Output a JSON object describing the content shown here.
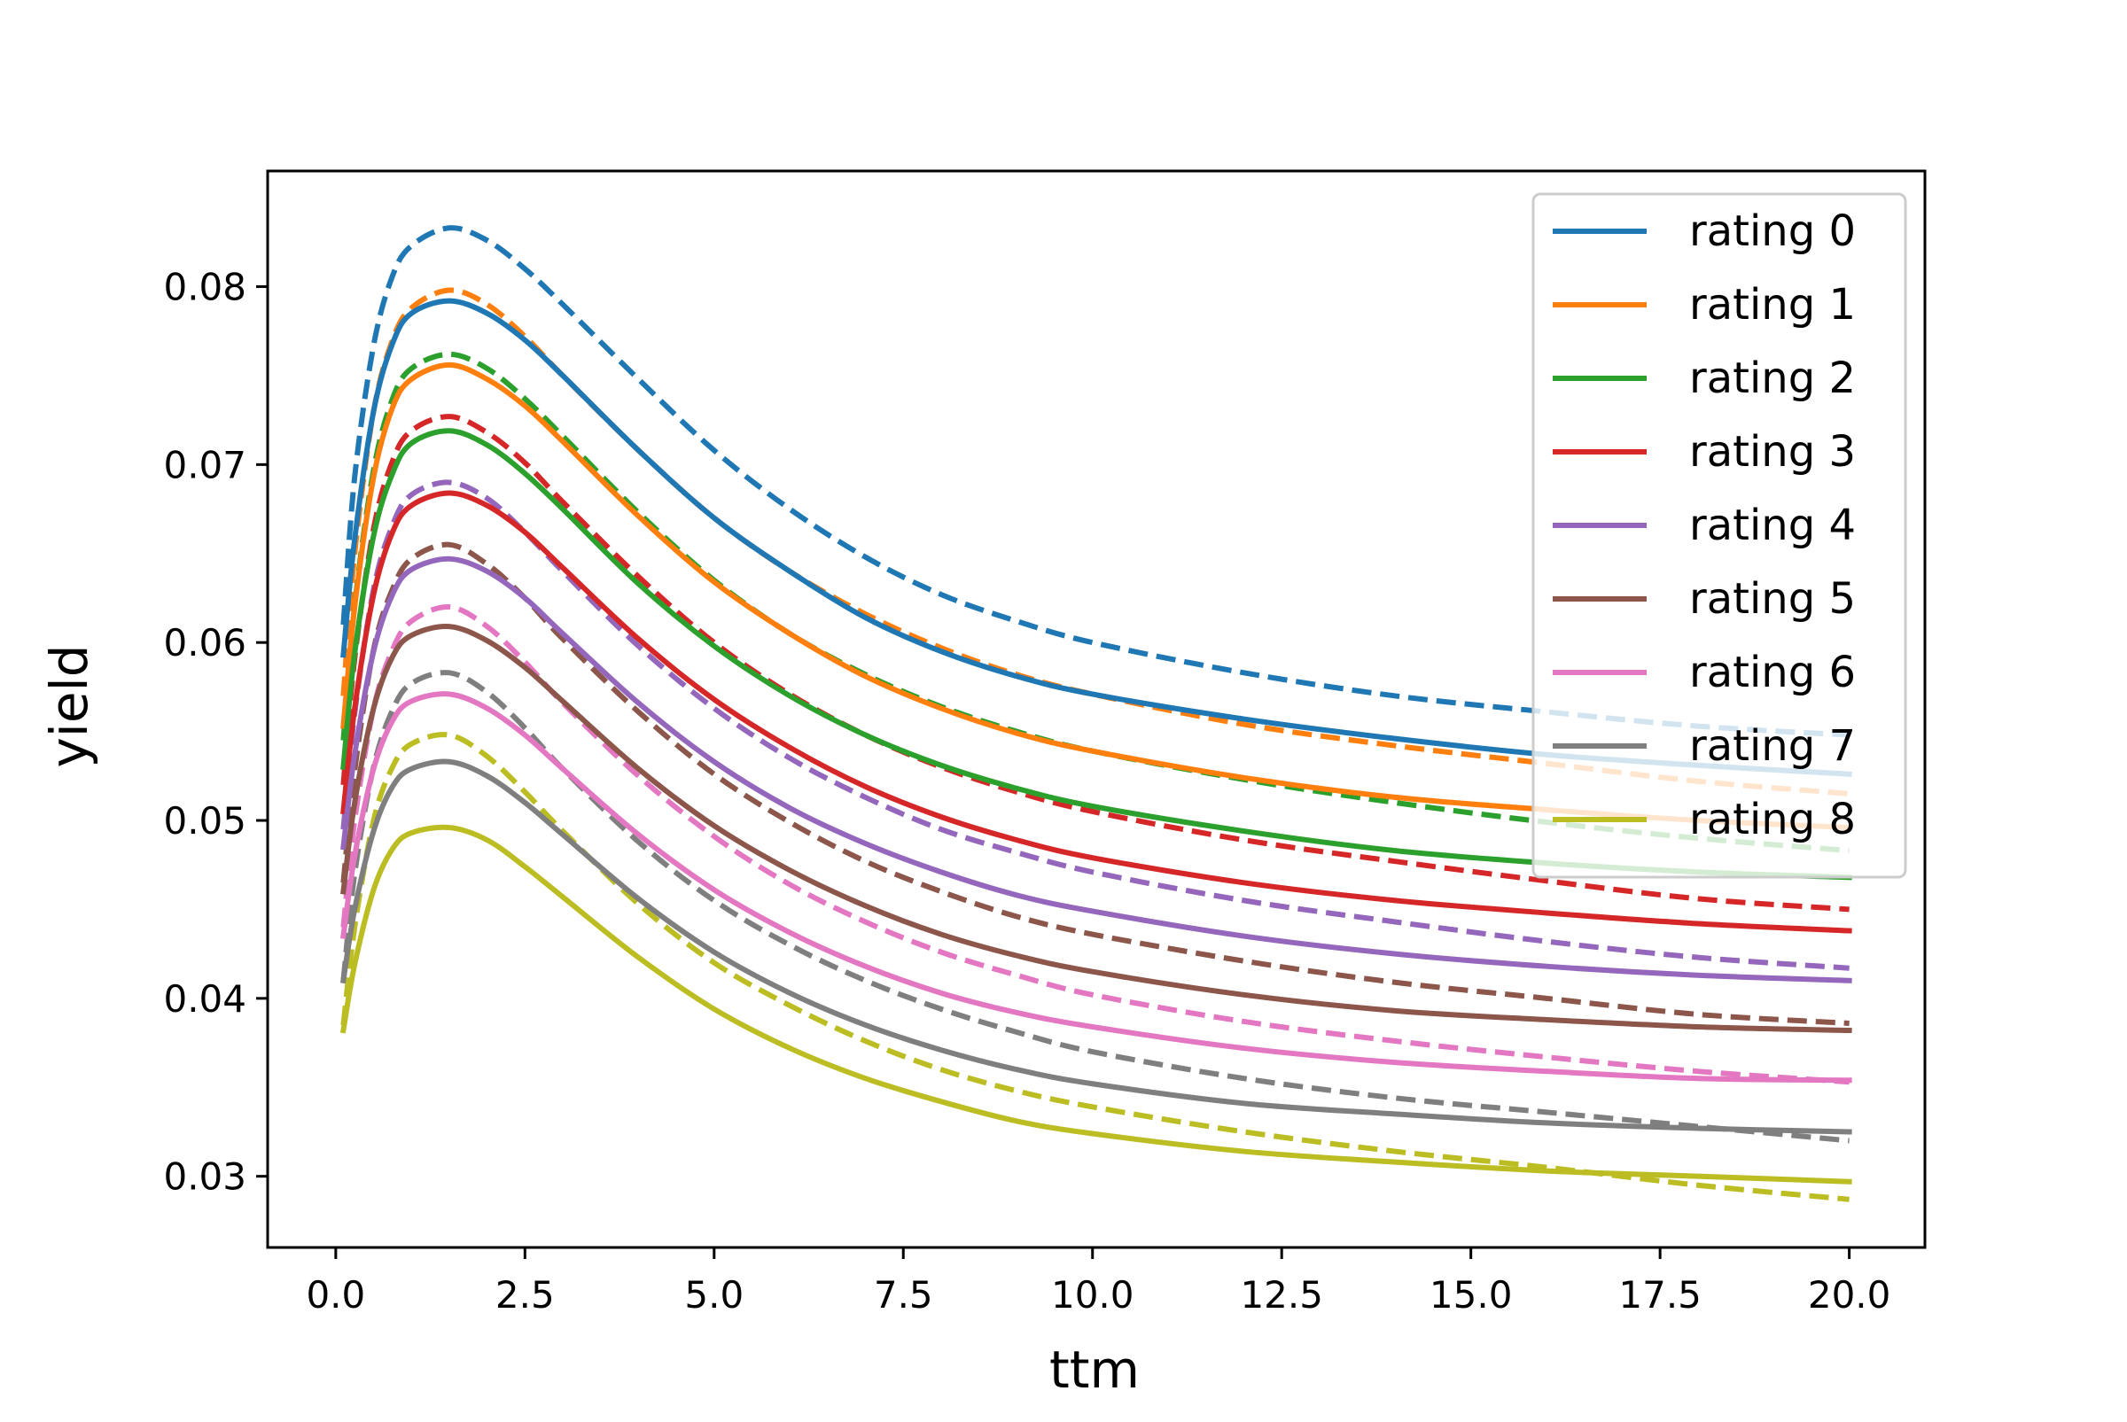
{
  "chart_data": {
    "type": "line",
    "title": "",
    "xlabel": "ttm",
    "ylabel": "yield",
    "xlim": [
      -0.9,
      21.0
    ],
    "ylim": [
      0.026,
      0.0865
    ],
    "xticks": [
      0.0,
      2.5,
      5.0,
      7.5,
      10.0,
      12.5,
      15.0,
      17.5,
      20.0
    ],
    "xtick_labels": [
      "0.0",
      "2.5",
      "5.0",
      "7.5",
      "10.0",
      "12.5",
      "15.0",
      "17.5",
      "20.0"
    ],
    "yticks": [
      0.03,
      0.04,
      0.05,
      0.06,
      0.07,
      0.08
    ],
    "ytick_labels": [
      "0.03",
      "0.04",
      "0.05",
      "0.06",
      "0.07",
      "0.08"
    ],
    "grid": false,
    "legend": {
      "position": "top-right",
      "style": "solid"
    },
    "x": [
      0.1,
      0.25,
      0.5,
      0.75,
      1.0,
      1.5,
      2.0,
      2.5,
      3.0,
      4.0,
      5.0,
      6.0,
      7.0,
      8.0,
      9.0,
      10.0,
      12.0,
      14.0,
      16.0,
      18.0,
      20.0
    ],
    "series": [
      {
        "name": "rating 0",
        "color": "#1f77b4",
        "solid": [
          0.0593,
          0.0658,
          0.073,
          0.0768,
          0.0785,
          0.0792,
          0.0785,
          0.077,
          0.075,
          0.0708,
          0.067,
          0.064,
          0.0614,
          0.0595,
          0.0581,
          0.0571,
          0.0557,
          0.0546,
          0.0537,
          0.0531,
          0.0526
        ],
        "dashed": [
          0.061,
          0.0693,
          0.0767,
          0.0806,
          0.0823,
          0.0833,
          0.0826,
          0.081,
          0.079,
          0.0748,
          0.0708,
          0.0675,
          0.0648,
          0.0627,
          0.0612,
          0.06,
          0.0583,
          0.057,
          0.0561,
          0.0553,
          0.0548
        ]
      },
      {
        "name": "rating 1",
        "color": "#ff7f0e",
        "solid": [
          0.0553,
          0.062,
          0.0693,
          0.0732,
          0.0748,
          0.0756,
          0.0748,
          0.0733,
          0.0713,
          0.0671,
          0.0634,
          0.0605,
          0.0581,
          0.0563,
          0.0549,
          0.0539,
          0.0524,
          0.0513,
          0.0506,
          0.05,
          0.0496
        ],
        "dashed": [
          0.057,
          0.065,
          0.073,
          0.077,
          0.0788,
          0.0798,
          0.079,
          0.0772,
          0.075,
          0.0708,
          0.067,
          0.064,
          0.0616,
          0.0597,
          0.0582,
          0.0571,
          0.0554,
          0.0542,
          0.0532,
          0.0522,
          0.0515
        ]
      },
      {
        "name": "rating 2",
        "color": "#2ca02c",
        "solid": [
          0.053,
          0.0594,
          0.066,
          0.0695,
          0.0712,
          0.0719,
          0.0711,
          0.0695,
          0.0675,
          0.0633,
          0.0598,
          0.057,
          0.0548,
          0.0531,
          0.0518,
          0.0508,
          0.0494,
          0.0483,
          0.0476,
          0.0471,
          0.0468
        ],
        "dashed": [
          0.0545,
          0.0621,
          0.0697,
          0.0737,
          0.0754,
          0.0762,
          0.0754,
          0.0737,
          0.0716,
          0.0673,
          0.0635,
          0.0605,
          0.0582,
          0.0564,
          0.055,
          0.0539,
          0.0523,
          0.051,
          0.0499,
          0.049,
          0.0483
        ]
      },
      {
        "name": "rating 3",
        "color": "#d62728",
        "solid": [
          0.0505,
          0.0563,
          0.0627,
          0.0662,
          0.0677,
          0.0684,
          0.0677,
          0.0662,
          0.0642,
          0.0602,
          0.0568,
          0.0541,
          0.0519,
          0.0502,
          0.0489,
          0.0479,
          0.0465,
          0.0455,
          0.0448,
          0.0442,
          0.0438
        ],
        "dashed": [
          0.052,
          0.0591,
          0.0664,
          0.0702,
          0.0719,
          0.0727,
          0.0718,
          0.0701,
          0.0679,
          0.0637,
          0.06,
          0.0571,
          0.0548,
          0.053,
          0.0516,
          0.0505,
          0.0489,
          0.0477,
          0.0466,
          0.0456,
          0.045
        ]
      },
      {
        "name": "rating 4",
        "color": "#9467bd",
        "solid": [
          0.0485,
          0.0537,
          0.0595,
          0.0627,
          0.0641,
          0.0647,
          0.064,
          0.0625,
          0.0605,
          0.0566,
          0.0533,
          0.0507,
          0.0487,
          0.0471,
          0.0458,
          0.0449,
          0.0435,
          0.0425,
          0.0418,
          0.0413,
          0.041
        ],
        "dashed": [
          0.0495,
          0.056,
          0.063,
          0.0666,
          0.0683,
          0.069,
          0.0681,
          0.0662,
          0.064,
          0.0598,
          0.0563,
          0.0535,
          0.0513,
          0.0495,
          0.0482,
          0.0471,
          0.0455,
          0.0443,
          0.0432,
          0.0423,
          0.0417
        ]
      },
      {
        "name": "rating 5",
        "color": "#8c564b",
        "solid": [
          0.046,
          0.051,
          0.0563,
          0.0592,
          0.0604,
          0.0609,
          0.0601,
          0.0586,
          0.0567,
          0.0529,
          0.0497,
          0.0472,
          0.0452,
          0.0436,
          0.0424,
          0.0415,
          0.0402,
          0.0393,
          0.0388,
          0.0384,
          0.0382
        ],
        "dashed": [
          0.0465,
          0.0528,
          0.0596,
          0.063,
          0.0647,
          0.0655,
          0.0644,
          0.0625,
          0.0602,
          0.0561,
          0.0526,
          0.0499,
          0.0477,
          0.046,
          0.0446,
          0.0436,
          0.0421,
          0.0409,
          0.04,
          0.0391,
          0.0386
        ]
      },
      {
        "name": "rating 6",
        "color": "#e377c2",
        "solid": [
          0.0435,
          0.048,
          0.0529,
          0.0556,
          0.0567,
          0.0571,
          0.0563,
          0.0548,
          0.0529,
          0.0492,
          0.0461,
          0.0437,
          0.0418,
          0.0403,
          0.0392,
          0.0384,
          0.0372,
          0.0364,
          0.0359,
          0.0355,
          0.0354
        ],
        "dashed": [
          0.044,
          0.05,
          0.0563,
          0.0596,
          0.0612,
          0.062,
          0.0609,
          0.0589,
          0.0566,
          0.0525,
          0.0491,
          0.0464,
          0.0443,
          0.0426,
          0.0413,
          0.0402,
          0.0387,
          0.0376,
          0.0367,
          0.0359,
          0.0353
        ]
      },
      {
        "name": "rating 7",
        "color": "#7f7f7f",
        "solid": [
          0.041,
          0.045,
          0.0494,
          0.0519,
          0.0529,
          0.0533,
          0.0525,
          0.051,
          0.0492,
          0.0456,
          0.0426,
          0.0403,
          0.0385,
          0.0371,
          0.036,
          0.0352,
          0.0341,
          0.0335,
          0.033,
          0.0327,
          0.0325
        ],
        "dashed": [
          0.041,
          0.047,
          0.053,
          0.0562,
          0.0577,
          0.0583,
          0.0572,
          0.0552,
          0.0529,
          0.0488,
          0.0455,
          0.043,
          0.041,
          0.0394,
          0.0381,
          0.037,
          0.0355,
          0.0344,
          0.0336,
          0.0328,
          0.032
        ]
      },
      {
        "name": "rating 8",
        "color": "#bcbd22",
        "solid": [
          0.0382,
          0.0419,
          0.0461,
          0.0484,
          0.0493,
          0.0496,
          0.0489,
          0.0474,
          0.0457,
          0.0423,
          0.0394,
          0.0372,
          0.0355,
          0.0342,
          0.0331,
          0.0324,
          0.0314,
          0.0308,
          0.0303,
          0.03,
          0.0297
        ],
        "dashed": [
          0.0385,
          0.044,
          0.05,
          0.053,
          0.0543,
          0.0548,
          0.0536,
          0.0516,
          0.0494,
          0.0453,
          0.042,
          0.0396,
          0.0376,
          0.036,
          0.0348,
          0.0339,
          0.0325,
          0.0314,
          0.0305,
          0.0295,
          0.0287
        ]
      }
    ]
  }
}
